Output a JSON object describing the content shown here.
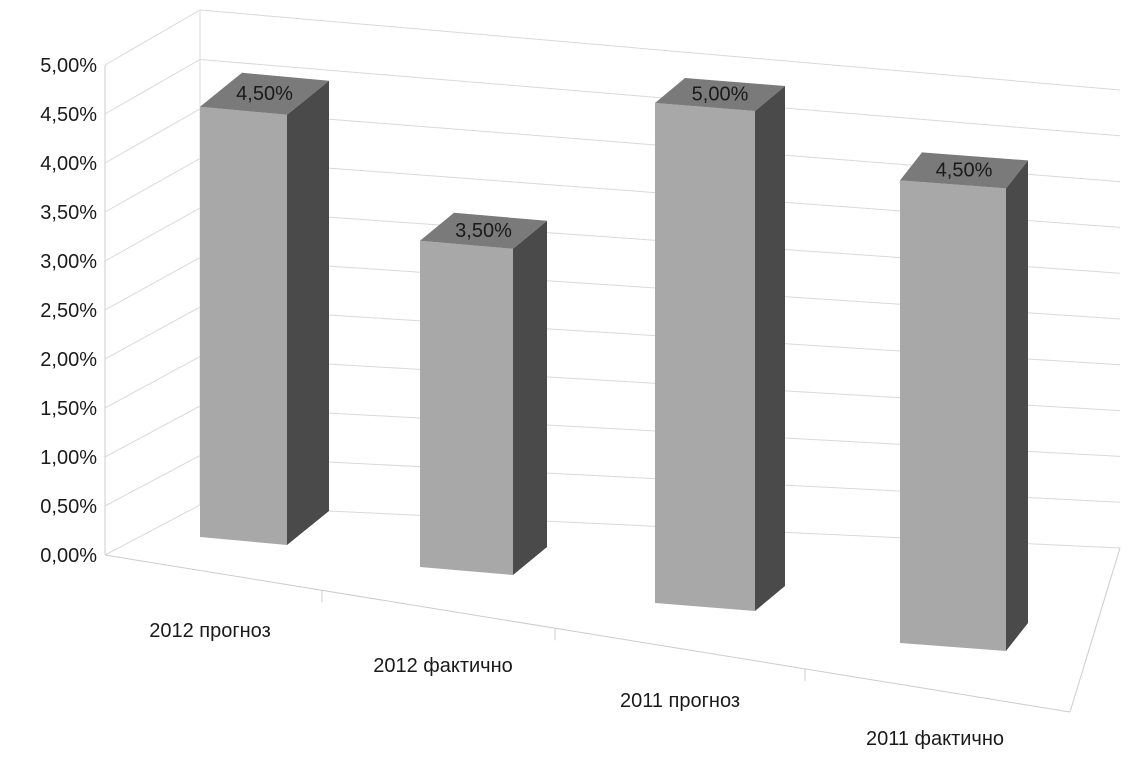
{
  "chart_data": {
    "type": "bar",
    "style": "3d-column",
    "categories": [
      "2012 прогноз",
      "2012 фактично",
      "2011 прогноз",
      "2011 фактично"
    ],
    "values": [
      4.5,
      3.5,
      5.0,
      4.5
    ],
    "data_labels": [
      "4,50%",
      "3,50%",
      "5,00%",
      "4,50%"
    ],
    "y_ticks": [
      "0,00%",
      "0,50%",
      "1,00%",
      "1,50%",
      "2,00%",
      "2,50%",
      "3,00%",
      "3,50%",
      "4,00%",
      "4,50%",
      "5,00%"
    ],
    "ylim": [
      0,
      5
    ],
    "grid": true,
    "legend": "none",
    "title": "",
    "xlabel": "",
    "ylabel": "",
    "colors": {
      "bar_front": "#a8a8a8",
      "bar_top": "#7a7a7a",
      "bar_side": "#4a4a4a",
      "grid": "#d9d9d9",
      "axis": "#cccccc"
    }
  }
}
